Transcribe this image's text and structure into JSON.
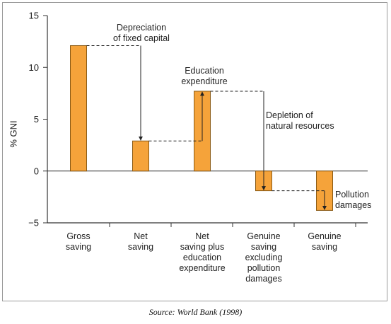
{
  "chart_data": {
    "type": "bar",
    "categories": [
      "Gross saving",
      "Net saving",
      "Net saving plus education expenditure",
      "Genuine saving excluding pollution damages",
      "Genuine saving"
    ],
    "category_lines": [
      [
        "Gross",
        "saving"
      ],
      [
        "Net",
        "saving"
      ],
      [
        "Net",
        "saving plus",
        "education",
        "expenditure"
      ],
      [
        "Genuine",
        "saving",
        "excluding",
        "pollution",
        "damages"
      ],
      [
        "Genuine",
        "saving"
      ]
    ],
    "values": [
      12.1,
      2.9,
      7.7,
      -1.9,
      -3.8
    ],
    "ylabel": "% GNI",
    "ylim": [
      -5,
      15
    ],
    "yticks": [
      -5,
      0,
      5,
      10,
      15
    ],
    "grid": false,
    "annotations": [
      {
        "lines": [
          "Depreciation",
          "of fixed capital"
        ],
        "from_bar": 0,
        "to_bar": 1
      },
      {
        "lines": [
          "Education",
          "expenditure"
        ],
        "from_bar": 1,
        "to_bar": 2
      },
      {
        "lines": [
          "Depletion of",
          "natural resources"
        ],
        "from_bar": 2,
        "to_bar": 3
      },
      {
        "lines": [
          "Pollution",
          "damages"
        ],
        "from_bar": 3,
        "to_bar": 4
      }
    ]
  },
  "colors": {
    "bar_fill": "#f5a33a",
    "bar_stroke": "#8a5a14",
    "axis": "#333333"
  },
  "source": "Source: World Bank (1998)"
}
